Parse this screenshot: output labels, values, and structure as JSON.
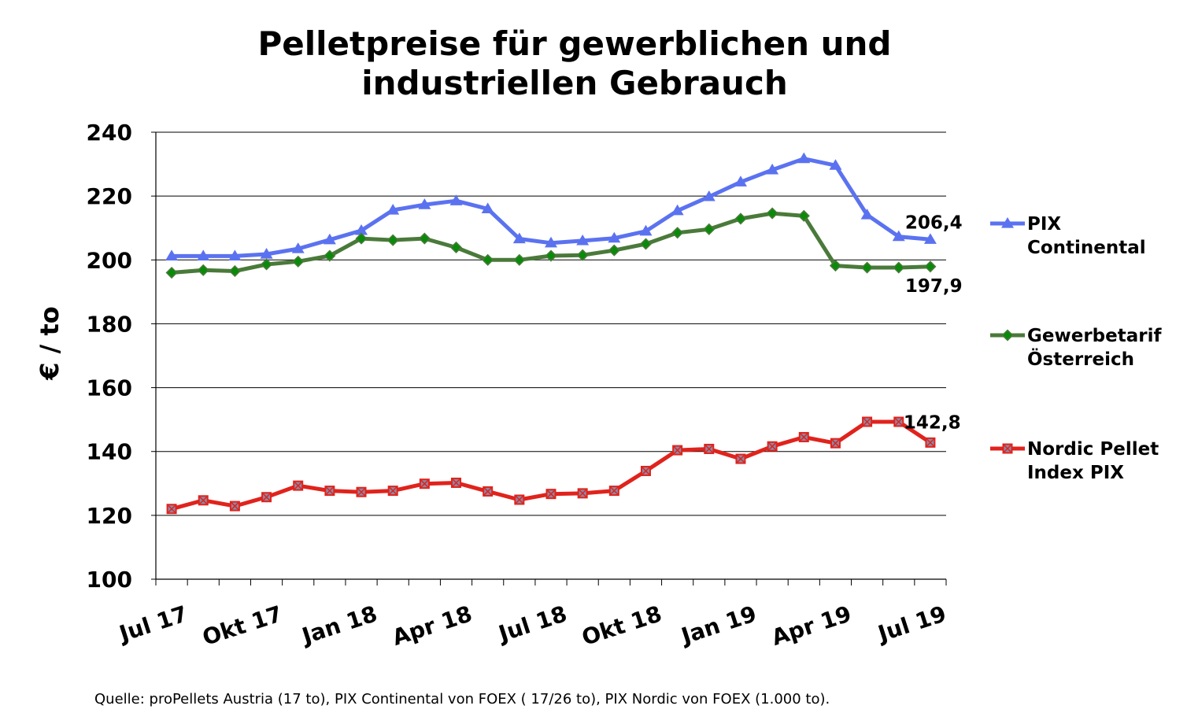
{
  "chart_data": {
    "type": "line",
    "title": [
      "Pelletpreise für gewerblichen und",
      "industriellen Gebrauch"
    ],
    "ylabel": "€ / to",
    "xlabel": "",
    "ylim": [
      100,
      240
    ],
    "yticks": [
      100,
      120,
      140,
      160,
      180,
      200,
      220,
      240
    ],
    "grid": true,
    "legend_position": "right",
    "x": [
      "2017-07",
      "2017-08",
      "2017-09",
      "2017-10",
      "2017-11",
      "2017-12",
      "2018-01",
      "2018-02",
      "2018-03",
      "2018-04",
      "2018-05",
      "2018-06",
      "2018-07",
      "2018-08",
      "2018-09",
      "2018-10",
      "2018-11",
      "2018-12",
      "2019-01",
      "2019-02",
      "2019-03",
      "2019-04",
      "2019-05",
      "2019-06",
      "2019-07"
    ],
    "xtick_labels": [
      {
        "label": "Jul 17",
        "index": 0
      },
      {
        "label": "Okt 17",
        "index": 3
      },
      {
        "label": "Jan 18",
        "index": 6
      },
      {
        "label": "Apr 18",
        "index": 9
      },
      {
        "label": "Jul 18",
        "index": 12
      },
      {
        "label": "Okt 18",
        "index": 15
      },
      {
        "label": "Jan 19",
        "index": 18
      },
      {
        "label": "Apr 19",
        "index": 21
      },
      {
        "label": "Jul 19",
        "index": 24
      }
    ],
    "series": [
      {
        "name": [
          "PIX",
          "Continental"
        ],
        "color": "#5b72f0",
        "marker": "triangle",
        "values": [
          201.2,
          201.2,
          201.2,
          201.8,
          203.5,
          206.3,
          209.2,
          215.6,
          217.3,
          218.5,
          216.0,
          206.6,
          205.3,
          206.0,
          206.8,
          209.0,
          215.4,
          219.8,
          224.4,
          228.2,
          231.7,
          229.6,
          214.1,
          207.3,
          206.4
        ],
        "end_label": "206,4"
      },
      {
        "name": [
          "Gewerbetarif",
          "Österreich"
        ],
        "color": "#4a7a3a",
        "marker_fill": "#0a8a0a",
        "marker": "diamond",
        "values": [
          196.0,
          196.8,
          196.5,
          198.6,
          199.5,
          201.3,
          206.7,
          206.2,
          206.7,
          203.9,
          200.0,
          200.0,
          201.3,
          201.5,
          203.0,
          205.0,
          208.5,
          209.6,
          212.9,
          214.6,
          213.8,
          198.2,
          197.6,
          197.6,
          197.9
        ],
        "end_label": "197,9"
      },
      {
        "name": [
          "Nordic Pellet",
          "Index PIX"
        ],
        "color": "#e0231c",
        "marker_fill": "#8a8aa8",
        "marker": "square-x",
        "values": [
          122.0,
          124.7,
          122.9,
          125.7,
          129.3,
          127.7,
          127.3,
          127.7,
          129.9,
          130.2,
          127.5,
          124.9,
          126.7,
          126.9,
          127.7,
          133.9,
          140.4,
          140.8,
          137.7,
          141.6,
          144.5,
          142.6,
          149.3,
          149.3,
          142.8
        ],
        "end_label": "142,8"
      }
    ],
    "source_note": "Quelle: proPellets Austria (17 to), PIX Continental von FOEX ( 17/26 to), PIX Nordic von FOEX (1.000 to)."
  }
}
